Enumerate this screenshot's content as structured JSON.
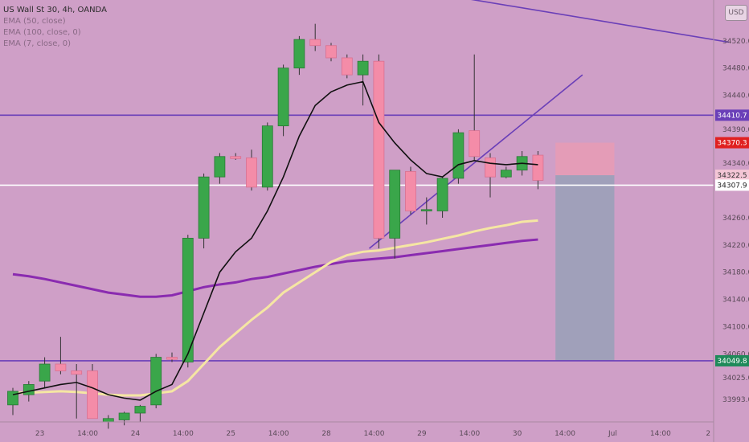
{
  "legend": {
    "symbol": "US Wall St 30, 4h, OANDA",
    "ema50": "EMA (50, close)",
    "ema100": "EMA (100, close, 0)",
    "ema7": "EMA (7, close, 0)"
  },
  "currency": "USD",
  "colors": {
    "background": "#cf9fc7",
    "up": "#3aa64a",
    "down": "#f48ca8",
    "ema7": "#111111",
    "ema50": "#f5e6a3",
    "ema100": "#8a2bb0",
    "hline": "#6a3fb8",
    "white_line": "#ffffff",
    "stop_zone": "#e79bb4",
    "target_zone": "#9aa0b8"
  },
  "chart_data": {
    "type": "candlestick",
    "yrange": [
      33960,
      34580
    ],
    "price_ticks": [
      "34520.0",
      "34480.0",
      "34440.0",
      "34390.0",
      "34340.0",
      "34260.0",
      "34220.0",
      "34180.0",
      "34140.0",
      "34100.0",
      "34060.0",
      "34025.0",
      "33993.0"
    ],
    "time_ticks": [
      {
        "i": 1.7,
        "label": "23"
      },
      {
        "i": 4.7,
        "label": "14:00"
      },
      {
        "i": 7.7,
        "label": "24"
      },
      {
        "i": 10.7,
        "label": "14:00"
      },
      {
        "i": 13.7,
        "label": "25"
      },
      {
        "i": 16.7,
        "label": "14:00"
      },
      {
        "i": 19.7,
        "label": "28"
      },
      {
        "i": 22.7,
        "label": "14:00"
      },
      {
        "i": 25.7,
        "label": "29"
      },
      {
        "i": 28.7,
        "label": "14:00"
      },
      {
        "i": 31.7,
        "label": "30"
      },
      {
        "i": 34.7,
        "label": "14:00"
      },
      {
        "i": 37.7,
        "label": "Jul"
      },
      {
        "i": 40.7,
        "label": "14:00"
      },
      {
        "i": 43.7,
        "label": "2"
      }
    ],
    "candles": [
      {
        "o": 33985,
        "h": 34010,
        "l": 33970,
        "c": 34005
      },
      {
        "o": 34000,
        "h": 34020,
        "l": 33990,
        "c": 34015
      },
      {
        "o": 34020,
        "h": 34055,
        "l": 34010,
        "c": 34045
      },
      {
        "o": 34045,
        "h": 34085,
        "l": 34030,
        "c": 34035
      },
      {
        "o": 34035,
        "h": 34045,
        "l": 33965,
        "c": 34030
      },
      {
        "o": 34035,
        "h": 34045,
        "l": 33965,
        "c": 33965
      },
      {
        "o": 33960,
        "h": 33970,
        "l": 33950,
        "c": 33965
      },
      {
        "o": 33963,
        "h": 33975,
        "l": 33955,
        "c": 33973
      },
      {
        "o": 33973,
        "h": 33985,
        "l": 33960,
        "c": 33983
      },
      {
        "o": 33985,
        "h": 34060,
        "l": 33980,
        "c": 34055
      },
      {
        "o": 34055,
        "h": 34062,
        "l": 34048,
        "c": 34052
      },
      {
        "o": 34048,
        "h": 34235,
        "l": 34040,
        "c": 34230
      },
      {
        "o": 34230,
        "h": 34325,
        "l": 34215,
        "c": 34320
      },
      {
        "o": 34320,
        "h": 34355,
        "l": 34310,
        "c": 34350
      },
      {
        "o": 34350,
        "h": 34355,
        "l": 34345,
        "c": 34347
      },
      {
        "o": 34348,
        "h": 34360,
        "l": 34300,
        "c": 34305
      },
      {
        "o": 34305,
        "h": 34400,
        "l": 34300,
        "c": 34395
      },
      {
        "o": 34395,
        "h": 34485,
        "l": 34380,
        "c": 34480
      },
      {
        "o": 34480,
        "h": 34527,
        "l": 34470,
        "c": 34522
      },
      {
        "o": 34522,
        "h": 34545,
        "l": 34505,
        "c": 34513
      },
      {
        "o": 34513,
        "h": 34517,
        "l": 34490,
        "c": 34495
      },
      {
        "o": 34495,
        "h": 34500,
        "l": 34465,
        "c": 34470
      },
      {
        "o": 34470,
        "h": 34500,
        "l": 34425,
        "c": 34490
      },
      {
        "o": 34490,
        "h": 34500,
        "l": 34215,
        "c": 34230
      },
      {
        "o": 34230,
        "h": 34330,
        "l": 34200,
        "c": 34330
      },
      {
        "o": 34328,
        "h": 34335,
        "l": 34265,
        "c": 34270
      },
      {
        "o": 34270,
        "h": 34290,
        "l": 34250,
        "c": 34272
      },
      {
        "o": 34270,
        "h": 34320,
        "l": 34260,
        "c": 34318
      },
      {
        "o": 34318,
        "h": 34390,
        "l": 34310,
        "c": 34385
      },
      {
        "o": 34388,
        "h": 34500,
        "l": 34345,
        "c": 34350
      },
      {
        "o": 34348,
        "h": 34355,
        "l": 34290,
        "c": 34320
      },
      {
        "o": 34320,
        "h": 34335,
        "l": 34318,
        "c": 34330
      },
      {
        "o": 34330,
        "h": 34358,
        "l": 34322,
        "c": 34350
      },
      {
        "o": 34352,
        "h": 34358,
        "l": 34302,
        "c": 34315
      }
    ],
    "ema7": [
      34000,
      34005,
      34010,
      34015,
      34018,
      34010,
      34000,
      33995,
      33992,
      34005,
      34015,
      34060,
      34120,
      34180,
      34210,
      34230,
      34270,
      34320,
      34380,
      34425,
      34445,
      34455,
      34460,
      34400,
      34370,
      34345,
      34325,
      34320,
      34338,
      34344,
      34340,
      34338,
      34340,
      34338
    ],
    "ema50": [
      34003,
      34003,
      34004,
      34005,
      34004,
      34002,
      34000,
      33999,
      33999,
      34002,
      34005,
      34020,
      34045,
      34070,
      34090,
      34110,
      34128,
      34150,
      34165,
      34180,
      34195,
      34205,
      34210,
      34212,
      34216,
      34220,
      34224,
      34229,
      34234,
      34240,
      34245,
      34249,
      34254,
      34256
    ],
    "ema100": [
      34177,
      34174,
      34170,
      34165,
      34160,
      34155,
      34150,
      34147,
      34144,
      34144,
      34146,
      34152,
      34158,
      34162,
      34165,
      34170,
      34173,
      34178,
      34183,
      34188,
      34192,
      34196,
      34198,
      34200,
      34202,
      34205,
      34208,
      34211,
      34214,
      34217,
      34220,
      34223,
      34226,
      34228
    ],
    "hlines": [
      {
        "price": 34410.7,
        "label": "34410.7",
        "color": "#6a3fb8"
      },
      {
        "price": 34049.8,
        "label": "34049.8",
        "color": "#1f8a5a"
      }
    ],
    "current_line": {
      "price": 34307.9,
      "label": "34307.9"
    },
    "price_tags": [
      {
        "price": 34370.3,
        "label": "34370.3",
        "bg": "#e02020",
        "fg": "#ffffff"
      },
      {
        "price": 34322.5,
        "label": "34322.5",
        "bg": "#f4c6d6",
        "fg": "#333333"
      }
    ],
    "position": {
      "entry": 34322.5,
      "stop": 34370.3,
      "target": 34049.8,
      "i_start": 34.1,
      "i_end": 37.8
    },
    "trendlines": [
      {
        "i1": 21.3,
        "p1": 34610,
        "i2": 45.0,
        "p2": 34518,
        "color": "#6a3fb8"
      },
      {
        "i1": 22.4,
        "p1": 34215,
        "i2": 35.8,
        "p2": 34470,
        "color": "#6a3fb8"
      }
    ]
  }
}
